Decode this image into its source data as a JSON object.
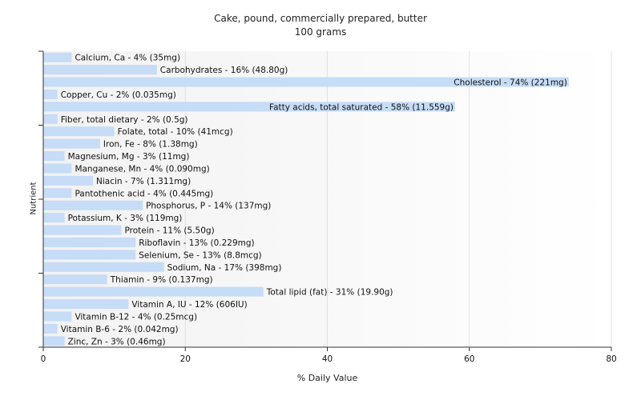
{
  "chart_data": {
    "type": "bar",
    "orientation": "horizontal",
    "title": "Cake, pound, commercially prepared, butter",
    "subtitle": "100 grams",
    "xlabel": "% Daily Value",
    "ylabel": "Nutrient",
    "xlim": [
      0,
      80
    ],
    "xticks": [
      0,
      20,
      40,
      60,
      80
    ],
    "grid": true,
    "bar_color": "#c6dcf7",
    "background_gradient": [
      "#f2f2f2",
      "#ffffff"
    ],
    "categories": [
      "Calcium, Ca",
      "Carbohydrates",
      "Cholesterol",
      "Copper, Cu",
      "Fatty acids, total saturated",
      "Fiber, total dietary",
      "Folate, total",
      "Iron, Fe",
      "Magnesium, Mg",
      "Manganese, Mn",
      "Niacin",
      "Pantothenic acid",
      "Phosphorus, P",
      "Potassium, K",
      "Protein",
      "Riboflavin",
      "Selenium, Se",
      "Sodium, Na",
      "Thiamin",
      "Total lipid (fat)",
      "Vitamin A, IU",
      "Vitamin B-12",
      "Vitamin B-6",
      "Zinc, Zn"
    ],
    "values": [
      4,
      16,
      74,
      2,
      58,
      2,
      10,
      8,
      3,
      4,
      7,
      4,
      14,
      3,
      11,
      13,
      13,
      17,
      9,
      31,
      12,
      4,
      2,
      3
    ],
    "labels": [
      "Calcium, Ca - 4% (35mg)",
      "Carbohydrates - 16% (48.80g)",
      "Cholesterol - 74% (221mg)",
      "Copper, Cu - 2% (0.035mg)",
      "Fatty acids, total saturated - 58% (11.559g)",
      "Fiber, total dietary - 2% (0.5g)",
      "Folate, total - 10% (41mcg)",
      "Iron, Fe - 8% (1.38mg)",
      "Magnesium, Mg - 3% (11mg)",
      "Manganese, Mn - 4% (0.090mg)",
      "Niacin - 7% (1.311mg)",
      "Pantothenic acid - 4% (0.445mg)",
      "Phosphorus, P - 14% (137mg)",
      "Potassium, K - 3% (119mg)",
      "Protein - 11% (5.50g)",
      "Riboflavin - 13% (0.229mg)",
      "Selenium, Se - 13% (8.8mcg)",
      "Sodium, Na - 17% (398mg)",
      "Thiamin - 9% (0.137mg)",
      "Total lipid (fat) - 31% (19.90g)",
      "Vitamin A, IU - 12% (606IU)",
      "Vitamin B-12 - 4% (0.25mcg)",
      "Vitamin B-6 - 2% (0.042mg)",
      "Zinc, Zn - 3% (0.46mg)"
    ]
  }
}
